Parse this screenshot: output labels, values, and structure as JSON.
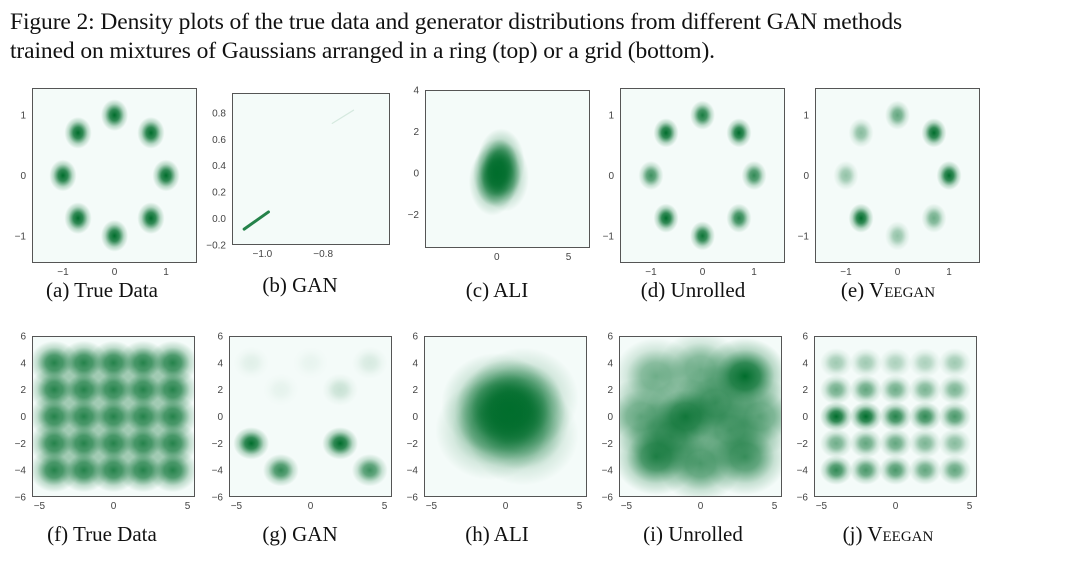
{
  "caption": {
    "line1": "Figure 2: Density plots of the true data and generator distributions from different GAN methods",
    "line2": "trained on mixtures of Gaussians arranged in a ring (top) or a grid (bottom)."
  },
  "colors": {
    "density": "#006d2c",
    "background": "#f4fbf9",
    "frame": "#555555"
  },
  "panels": [
    {
      "id": "a",
      "label_prefix": "(a) ",
      "label_main": "True Data",
      "label_sc": "",
      "xticks": [
        "-1",
        "0",
        "1"
      ],
      "yticks": [
        "1",
        "0",
        "-1"
      ],
      "chart_data": {
        "type": "heatmap",
        "xlim": [
          -1.6,
          1.6
        ],
        "ylim": [
          -1.45,
          1.45
        ],
        "modes": [
          [
            1,
            0,
            1
          ],
          [
            0.707,
            0.707,
            1
          ],
          [
            0,
            1,
            1
          ],
          [
            -0.707,
            0.707,
            1
          ],
          [
            -1,
            0,
            1
          ],
          [
            -0.707,
            -0.707,
            1
          ],
          [
            0,
            -1,
            1
          ],
          [
            0.707,
            -0.707,
            1
          ]
        ],
        "sigma": 0.12
      }
    },
    {
      "id": "b",
      "label_prefix": "(b) ",
      "label_main": "GAN",
      "label_sc": "",
      "xticks": [
        "-1.0",
        "-0.8"
      ],
      "yticks": [
        "0.8",
        "0.6",
        "0.4",
        "0.2",
        "0.0",
        "-0.2"
      ],
      "chart_data": {
        "type": "heatmap",
        "xlim": [
          -1.1,
          -0.58
        ],
        "ylim": [
          -0.2,
          0.95
        ],
        "segment": [
          [
            -1.06,
            -0.08
          ],
          [
            -0.98,
            0.05
          ]
        ],
        "faint_segment": [
          [
            -0.77,
            0.72
          ],
          [
            -0.7,
            0.82
          ]
        ]
      }
    },
    {
      "id": "c",
      "label_prefix": "(c) ",
      "label_main": "ALI",
      "label_sc": "",
      "xticks": [
        "0",
        "5"
      ],
      "yticks": [
        "4",
        "2",
        "0",
        "-2"
      ],
      "chart_data": {
        "type": "heatmap",
        "xlim": [
          -5,
          6.5
        ],
        "ylim": [
          -3.6,
          4
        ],
        "modes": [
          [
            0,
            0,
            1
          ],
          [
            0.3,
            0.5,
            0.8
          ],
          [
            -0.3,
            -0.4,
            0.7
          ],
          [
            0.6,
            -0.2,
            0.6
          ]
        ],
        "sigma": 0.75
      }
    },
    {
      "id": "d",
      "label_prefix": "(d) ",
      "label_main": "Unrolled",
      "label_sc": "",
      "xticks": [
        "-1",
        "0",
        "1"
      ],
      "yticks": [
        "1",
        "0",
        "-1"
      ],
      "chart_data": {
        "type": "heatmap",
        "xlim": [
          -1.6,
          1.6
        ],
        "ylim": [
          -1.45,
          1.45
        ],
        "modes": [
          [
            1,
            0,
            0.8
          ],
          [
            0.707,
            0.707,
            1
          ],
          [
            0,
            1,
            0.9
          ],
          [
            -0.707,
            0.707,
            1
          ],
          [
            -1,
            0,
            0.75
          ],
          [
            -0.707,
            -0.707,
            1
          ],
          [
            0,
            -1,
            0.95
          ],
          [
            0.707,
            -0.707,
            0.85
          ]
        ],
        "sigma": 0.11
      }
    },
    {
      "id": "e",
      "label_prefix": "(e) ",
      "label_main": "V",
      "label_sc": "eegan",
      "xticks": [
        "-1",
        "0",
        "1"
      ],
      "yticks": [
        "1",
        "0",
        "-1"
      ],
      "chart_data": {
        "type": "heatmap",
        "xlim": [
          -1.6,
          1.6
        ],
        "ylim": [
          -1.45,
          1.45
        ],
        "modes": [
          [
            1,
            0,
            1
          ],
          [
            0.707,
            0.707,
            1
          ],
          [
            0,
            1,
            0.6
          ],
          [
            -0.707,
            0.707,
            0.45
          ],
          [
            -1,
            0,
            0.4
          ],
          [
            -0.707,
            -0.707,
            1
          ],
          [
            0,
            -1,
            0.4
          ],
          [
            0.707,
            -0.707,
            0.55
          ]
        ],
        "sigma": 0.11
      }
    },
    {
      "id": "f",
      "label_prefix": "(f) ",
      "label_main": "True Data",
      "label_sc": "",
      "xticks": [
        "-5",
        "0",
        "5"
      ],
      "yticks": [
        "6",
        "4",
        "2",
        "0",
        "-2",
        "-4",
        "-6"
      ],
      "chart_data": {
        "type": "heatmap",
        "xlim": [
          -5.5,
          5.5
        ],
        "ylim": [
          -6,
          6
        ],
        "grid_modes": [
          -4,
          -2,
          0,
          2,
          4
        ],
        "sigma": 0.75,
        "weight": 0.85
      }
    },
    {
      "id": "g",
      "label_prefix": "(g) ",
      "label_main": "GAN",
      "label_sc": "",
      "xticks": [
        "-5",
        "0",
        "5"
      ],
      "yticks": [
        "6",
        "4",
        "2",
        "0",
        "-2",
        "-4",
        "-6"
      ],
      "chart_data": {
        "type": "heatmap",
        "xlim": [
          -5.5,
          5.5
        ],
        "ylim": [
          -6,
          6
        ],
        "modes": [
          [
            -4,
            -2,
            1
          ],
          [
            -2,
            -4,
            0.8
          ],
          [
            2,
            -2,
            1
          ],
          [
            4,
            -4,
            0.75
          ],
          [
            2,
            2,
            0.18
          ],
          [
            4,
            4,
            0.12
          ],
          [
            -4,
            4,
            0.08
          ],
          [
            -2,
            2,
            0.06
          ],
          [
            0,
            4,
            0.05
          ]
        ],
        "sigma": 0.55
      }
    },
    {
      "id": "h",
      "label_prefix": "(h) ",
      "label_main": "ALI",
      "label_sc": "",
      "xticks": [
        "-5",
        "0",
        "5"
      ],
      "yticks": [
        "6",
        "4",
        "2",
        "0",
        "-2",
        "-4",
        "-6"
      ],
      "chart_data": {
        "type": "heatmap",
        "xlim": [
          -5.5,
          5.5
        ],
        "ylim": [
          -6,
          6
        ],
        "modes": [
          [
            0.3,
            0.5,
            1
          ],
          [
            0.6,
            -0.2,
            0.7
          ],
          [
            -0.6,
            1,
            0.6
          ],
          [
            1.2,
            1.4,
            0.5
          ],
          [
            -1,
            -1,
            0.5
          ],
          [
            1.2,
            -1.4,
            0.45
          ]
        ],
        "sigma": 1.7
      }
    },
    {
      "id": "i",
      "label_prefix": "(i) ",
      "label_main": "Unrolled",
      "label_sc": "",
      "xticks": [
        "-5",
        "0",
        "5"
      ],
      "yticks": [
        "6",
        "4",
        "2",
        "0",
        "-2",
        "-4",
        "-6"
      ],
      "chart_data": {
        "type": "heatmap",
        "xlim": [
          -5.5,
          5.5
        ],
        "ylim": [
          -6,
          6
        ],
        "modes": [
          [
            3,
            3,
            1
          ],
          [
            -1,
            0,
            0.9
          ],
          [
            -3,
            -3,
            0.85
          ],
          [
            3,
            -3,
            0.75
          ],
          [
            -3,
            3,
            0.55
          ],
          [
            1,
            1,
            0.7
          ],
          [
            0,
            -3.5,
            0.7
          ],
          [
            -4,
            0,
            0.6
          ],
          [
            4,
            0,
            0.6
          ],
          [
            0,
            3.5,
            0.55
          ],
          [
            2,
            -1,
            0.6
          ],
          [
            -2,
            -1.5,
            0.6
          ]
        ],
        "sigma": 1.3
      }
    },
    {
      "id": "j",
      "label_prefix": "(j) ",
      "label_main": "V",
      "label_sc": "eegan",
      "xticks": [
        "-5",
        "0",
        "5"
      ],
      "yticks": [
        "6",
        "4",
        "2",
        "0",
        "-2",
        "-4",
        "-6"
      ],
      "chart_data": {
        "type": "heatmap",
        "xlim": [
          -5.5,
          5.5
        ],
        "ylim": [
          -6,
          6
        ],
        "grid_weights": [
          [
            0.35,
            0.35,
            0.3,
            0.3,
            0.35
          ],
          [
            0.55,
            0.6,
            0.55,
            0.5,
            0.5
          ],
          [
            1,
            1,
            0.85,
            0.8,
            0.7
          ],
          [
            0.55,
            0.6,
            0.6,
            0.5,
            0.45
          ],
          [
            0.8,
            0.7,
            0.7,
            0.6,
            0.6
          ]
        ],
        "grid_modes": [
          -4,
          -2,
          0,
          2,
          4
        ],
        "sigma": 0.5
      }
    }
  ]
}
